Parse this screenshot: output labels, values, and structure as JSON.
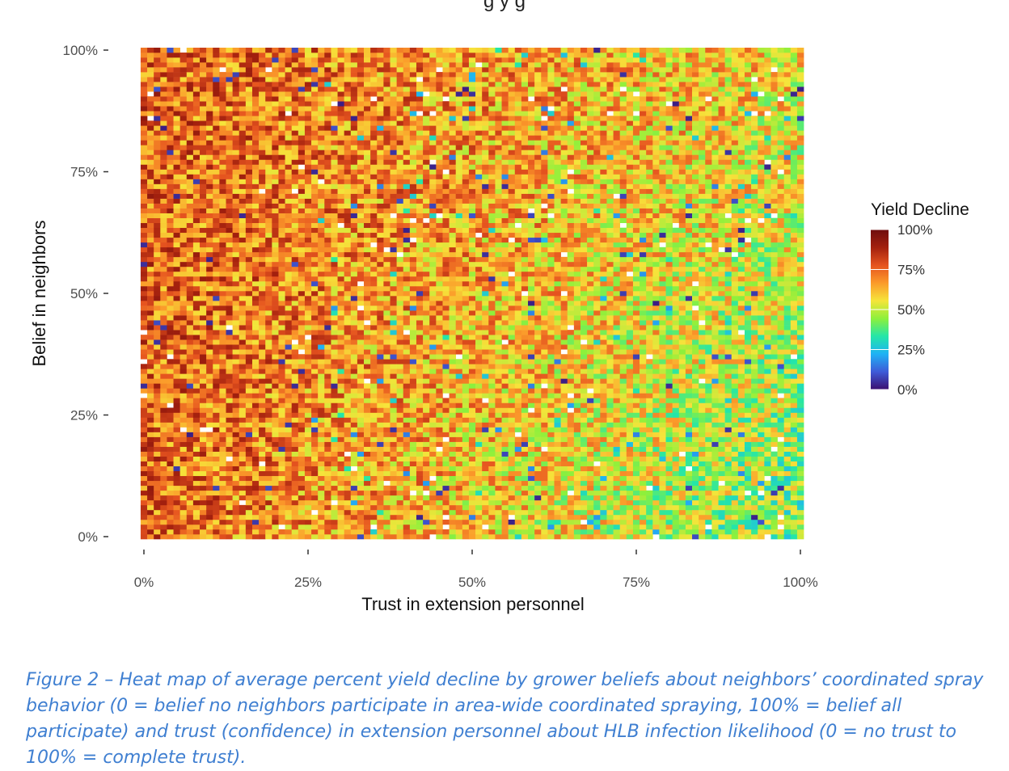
{
  "page": {
    "title_fragment": "g          y          g",
    "caption": "Figure 2 – Heat map of average percent yield decline by grower beliefs about neighbors’ coordinated spray behavior (0 = belief no neighbors participate in area-wide coordinated spraying, 100% = belief all participate) and trust (confidence) in extension personnel about HLB infection likelihood (0 = no trust to 100% = complete trust)."
  },
  "chart_data": {
    "type": "heatmap",
    "title": "",
    "xlabel": "Trust in extension personnel",
    "ylabel": "Belief in neighbors",
    "x_ticks": [
      "0%",
      "25%",
      "50%",
      "75%",
      "100%"
    ],
    "y_ticks": [
      "0%",
      "25%",
      "50%",
      "75%",
      "100%"
    ],
    "xlim": [
      0,
      100
    ],
    "ylim": [
      0,
      100
    ],
    "grid": false,
    "legend": {
      "title": "Yield Decline",
      "position": "right",
      "labels": [
        "100%",
        "75%",
        "50%",
        "25%",
        "0%"
      ],
      "colors": [
        "#3b0f70",
        "#3e5bd8",
        "#1fb2f5",
        "#24e6a8",
        "#8ef03b",
        "#f6e43a",
        "#fb9a2a",
        "#e5531f",
        "#a3200e",
        "#6e0d0d"
      ]
    },
    "resolution": 101,
    "summary_pattern": "Yield decline is highest (about 65–80%) at low trust in extension personnel across all levels of belief in neighbors, and decreases toward about 40–55% where trust is high and belief in neighbors is low to moderate; individual cells vary noisily between 0% and 100%."
  }
}
